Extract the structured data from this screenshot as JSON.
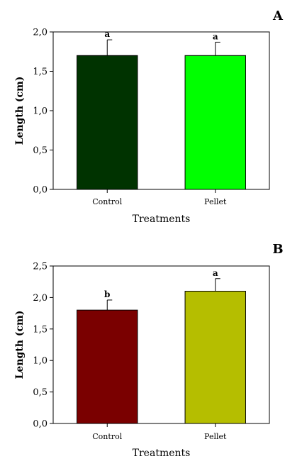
{
  "chart_data": [
    {
      "type": "bar",
      "panel_label": "A",
      "categories": [
        "Control",
        "Pellet"
      ],
      "values": [
        1.7,
        1.7
      ],
      "errors": [
        0.2,
        0.17
      ],
      "significance": [
        "a",
        "a"
      ],
      "colors": [
        "#003300",
        "#00ff00"
      ],
      "xlabel": "Treatments",
      "ylabel": "Length (cm)",
      "ylim": [
        0,
        2.0
      ],
      "yticks": [
        0,
        0.5,
        1.0,
        1.5,
        2.0
      ],
      "ytick_labels": [
        "0,0",
        "0,5",
        "1,0",
        "1,5",
        "2,0"
      ],
      "grid": false
    },
    {
      "type": "bar",
      "panel_label": "B",
      "categories": [
        "Control",
        "Pellet"
      ],
      "values": [
        1.8,
        2.1
      ],
      "errors": [
        0.16,
        0.2
      ],
      "significance": [
        "b",
        "a"
      ],
      "colors": [
        "#7a0000",
        "#b5be00"
      ],
      "xlabel": "Treatments",
      "ylabel": "Length (cm)",
      "ylim": [
        0,
        2.5
      ],
      "yticks": [
        0,
        0.5,
        1.0,
        1.5,
        2.0,
        2.5
      ],
      "ytick_labels": [
        "0,0",
        "0,5",
        "1,0",
        "1,5",
        "2,0",
        "2,5"
      ],
      "grid": false
    }
  ]
}
